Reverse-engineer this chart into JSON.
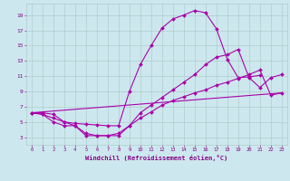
{
  "background_color": "#cce8ee",
  "grid_color": "#b0cccc",
  "line_color": "#aa00aa",
  "marker_color": "#aa00aa",
  "xlabel": "Windchill (Refroidissement éolien,°C)",
  "xlabel_color": "#880088",
  "tick_color": "#880088",
  "xlim": [
    -0.5,
    23.5
  ],
  "ylim": [
    2.0,
    20.5
  ],
  "yticks": [
    3,
    5,
    7,
    9,
    11,
    13,
    15,
    17,
    19
  ],
  "xticks": [
    0,
    1,
    2,
    3,
    4,
    5,
    6,
    7,
    8,
    9,
    10,
    11,
    12,
    13,
    14,
    15,
    16,
    17,
    18,
    19,
    20,
    21,
    22,
    23
  ],
  "line1_x": [
    0,
    1,
    2,
    3,
    4,
    5,
    6,
    7,
    8,
    9,
    10,
    11,
    12,
    13,
    14,
    15,
    16,
    17,
    18,
    19,
    20,
    21
  ],
  "line1_y": [
    6.2,
    6.2,
    6.0,
    5.0,
    4.8,
    4.7,
    4.6,
    4.5,
    4.5,
    9.0,
    12.5,
    15.0,
    17.3,
    18.5,
    19.0,
    19.6,
    19.3,
    17.2,
    13.2,
    10.8,
    10.9,
    11.1
  ],
  "line2_x": [
    0,
    1,
    2,
    3,
    4,
    5,
    6,
    7,
    8,
    9,
    10,
    11,
    12,
    13,
    14,
    15,
    16,
    17,
    18,
    19,
    20,
    21,
    22,
    23
  ],
  "line2_y": [
    6.2,
    6.0,
    5.0,
    4.5,
    4.5,
    3.2,
    3.2,
    3.2,
    3.2,
    4.5,
    6.2,
    7.2,
    8.2,
    9.2,
    10.2,
    11.2,
    12.5,
    13.5,
    13.8,
    14.5,
    10.8,
    9.5,
    10.8,
    11.2
  ],
  "line3_x": [
    0,
    1,
    2,
    3,
    4,
    5,
    6,
    7,
    8,
    9,
    10,
    11,
    12,
    13,
    14,
    15,
    16,
    17,
    18,
    19,
    20,
    21,
    22,
    23
  ],
  "line3_y": [
    6.2,
    6.0,
    5.5,
    5.0,
    4.5,
    3.5,
    3.2,
    3.2,
    3.5,
    4.5,
    5.5,
    6.3,
    7.2,
    7.8,
    8.3,
    8.8,
    9.2,
    9.8,
    10.2,
    10.7,
    11.2,
    11.8,
    8.5,
    8.8
  ],
  "line4_x": [
    0,
    23
  ],
  "line4_y": [
    6.2,
    8.8
  ]
}
